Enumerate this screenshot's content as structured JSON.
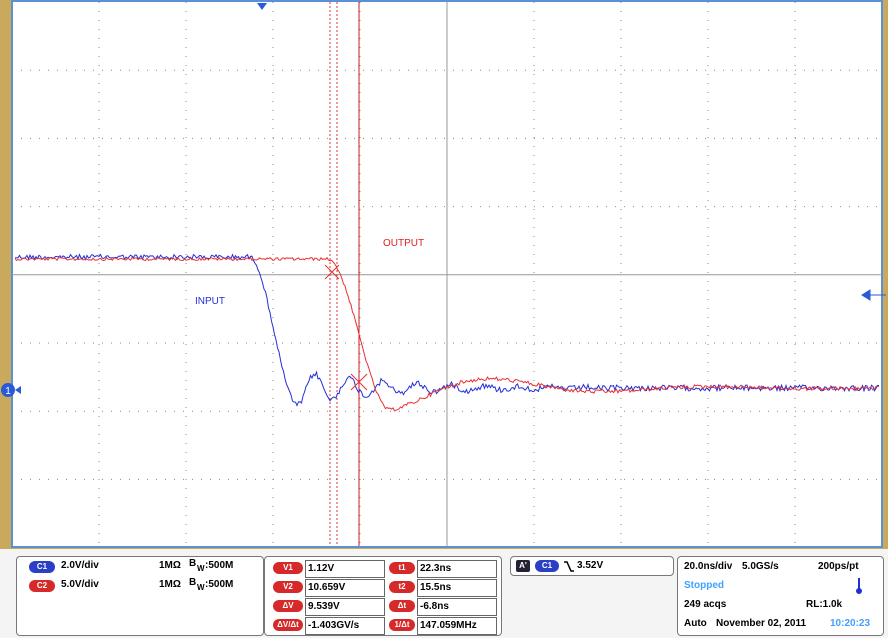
{
  "screen": {
    "labels": {
      "output": "OUTPUT",
      "input": "INPUT",
      "ch1_marker": "1"
    }
  },
  "channels": [
    {
      "badge": "C1",
      "scale": "2.0V/div",
      "impedance": "1MΩ",
      "bw_b": "B",
      "bw_w": "W",
      "bw": ":500M"
    },
    {
      "badge": "C2",
      "scale": "5.0V/div",
      "impedance": "1MΩ",
      "bw_b": "B",
      "bw_w": "W",
      "bw": ":500M"
    }
  ],
  "cursors": {
    "rows": [
      [
        "V1",
        "1.12V",
        "t1",
        "22.3ns"
      ],
      [
        "V2",
        "10.659V",
        "t2",
        "15.5ns"
      ],
      [
        "ΔV",
        "9.539V",
        "Δt",
        "-6.8ns"
      ],
      [
        "ΔV/Δt",
        "-1.403GV/s",
        "1/Δt",
        "147.059MHz"
      ]
    ]
  },
  "trigger": {
    "mode": "A'",
    "source": "C1",
    "level": "3.52V"
  },
  "timebase": {
    "scale": "20.0ns/div",
    "rate": "5.0GS/s",
    "resolution": "200ps/pt",
    "state": "Stopped",
    "acqs": "249 acqs",
    "record": "RL:1.0k",
    "trigger_mode": "Auto",
    "date": "November 02, 2011",
    "time": "10:20:23"
  }
}
